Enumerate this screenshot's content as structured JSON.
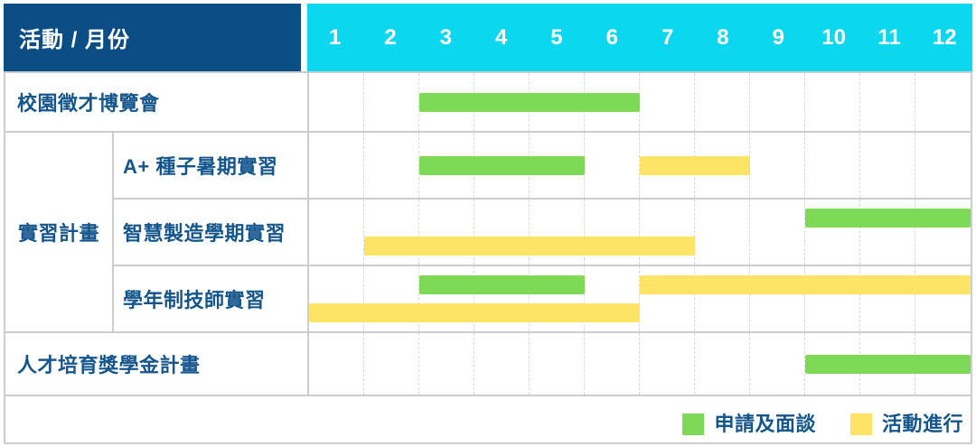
{
  "header": {
    "title": "活動 / 月份",
    "months": [
      "1",
      "2",
      "3",
      "4",
      "5",
      "6",
      "7",
      "8",
      "9",
      "10",
      "11",
      "12"
    ]
  },
  "group_label": "實習計畫",
  "rows": [
    {
      "label": "校園徵才博覽會",
      "group": "",
      "bars": [
        {
          "color": "green",
          "start": 3,
          "end": 6,
          "track": "single"
        }
      ]
    },
    {
      "label": "A+ 種子暑期實習",
      "group": "實習計畫",
      "bars": [
        {
          "color": "green",
          "start": 3,
          "end": 5,
          "track": "single"
        },
        {
          "color": "yellow",
          "start": 7,
          "end": 8,
          "track": "single"
        }
      ]
    },
    {
      "label": "智慧製造學期實習",
      "group": "實習計畫",
      "bars": [
        {
          "color": "green",
          "start": 10,
          "end": 12,
          "track": "top"
        },
        {
          "color": "yellow",
          "start": 2,
          "end": 7,
          "track": "bottom"
        }
      ]
    },
    {
      "label": "學年制技師實習",
      "group": "實習計畫",
      "bars": [
        {
          "color": "green",
          "start": 3,
          "end": 5,
          "track": "top"
        },
        {
          "color": "yellow",
          "start": 7,
          "end": 12,
          "track": "top"
        },
        {
          "color": "yellow",
          "start": 1,
          "end": 6,
          "track": "bottom"
        }
      ]
    },
    {
      "label": "人才培育獎學金計畫",
      "group": "",
      "bars": [
        {
          "color": "green",
          "start": 10,
          "end": 12,
          "track": "single"
        }
      ]
    }
  ],
  "legend": {
    "items": [
      {
        "color": "green",
        "label": "申請及面談"
      },
      {
        "color": "yellow",
        "label": "活動進行"
      }
    ]
  },
  "colors": {
    "navy": "#0B4E85",
    "cyan": "#0BD7EF",
    "green": "#7ED957",
    "yellow": "#FDE366",
    "label_text": "#14568C",
    "gridline": "#D9D9D9",
    "border": "#CDCDCD"
  },
  "chart_data": {
    "type": "gantt",
    "title": "活動 / 月份",
    "x_unit": "month",
    "x_ticks": [
      "1",
      "2",
      "3",
      "4",
      "5",
      "6",
      "7",
      "8",
      "9",
      "10",
      "11",
      "12"
    ],
    "x_range": [
      1,
      12
    ],
    "grid": true,
    "legend_position": "bottom-right",
    "legend": [
      {
        "label": "申請及面談",
        "color": "#7ED957"
      },
      {
        "label": "活動進行",
        "color": "#FDE366"
      }
    ],
    "tasks": [
      {
        "activity": "校園徵才博覽會",
        "group": null,
        "phases": [
          {
            "type": "申請及面談",
            "start_month": 3,
            "end_month": 6
          }
        ]
      },
      {
        "activity": "A+ 種子暑期實習",
        "group": "實習計畫",
        "phases": [
          {
            "type": "申請及面談",
            "start_month": 3,
            "end_month": 5
          },
          {
            "type": "活動進行",
            "start_month": 7,
            "end_month": 8
          }
        ]
      },
      {
        "activity": "智慧製造學期實習",
        "group": "實習計畫",
        "phases": [
          {
            "type": "申請及面談",
            "start_month": 10,
            "end_month": 12
          },
          {
            "type": "活動進行",
            "start_month": 2,
            "end_month": 7
          }
        ]
      },
      {
        "activity": "學年制技師實習",
        "group": "實習計畫",
        "phases": [
          {
            "type": "申請及面談",
            "start_month": 3,
            "end_month": 5
          },
          {
            "type": "活動進行",
            "start_month": 7,
            "end_month": 12
          },
          {
            "type": "活動進行",
            "start_month": 1,
            "end_month": 6
          }
        ]
      },
      {
        "activity": "人才培育獎學金計畫",
        "group": null,
        "phases": [
          {
            "type": "申請及面談",
            "start_month": 10,
            "end_month": 12
          }
        ]
      }
    ]
  }
}
